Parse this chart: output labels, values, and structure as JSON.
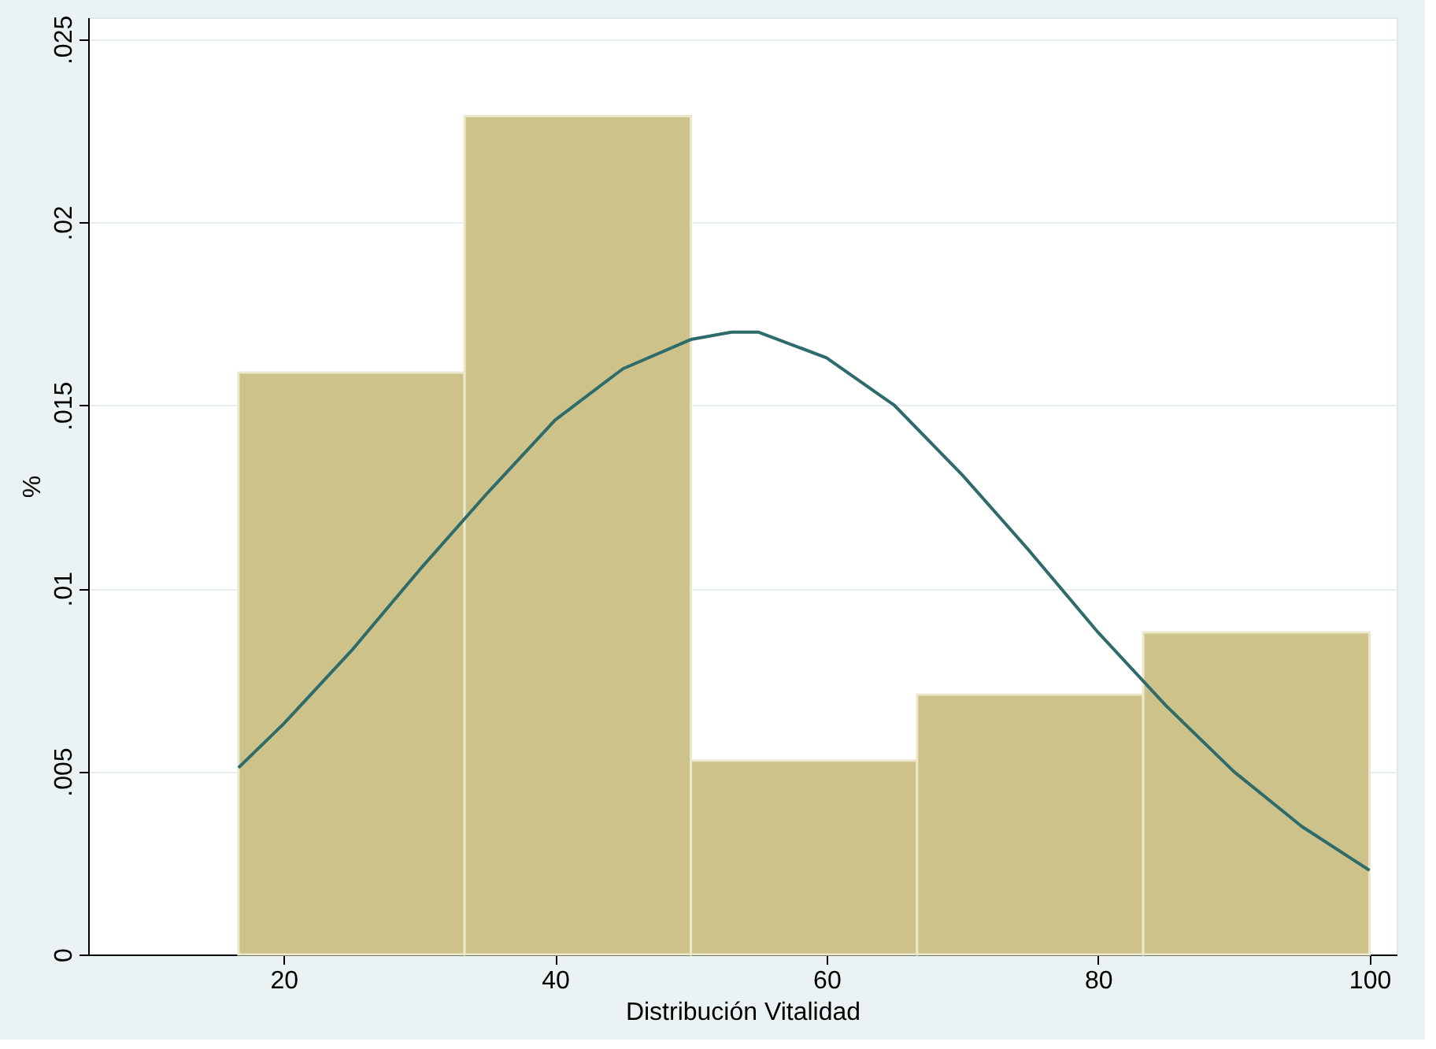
{
  "chart_data": {
    "type": "histogram",
    "xlabel": "Distribución Vitalidad",
    "ylabel": "%",
    "bins": [
      16.67,
      33.33,
      50,
      66.67,
      83.33,
      100
    ],
    "series": [
      {
        "color": "#cdc38a",
        "values": [
          0.0159,
          0.0229,
          0.0053,
          0.0071,
          0.0088
        ]
      },
      {
        "type": "line",
        "color": "#2e6b6b",
        "x": [
          16.67,
          20,
          25,
          30,
          35,
          40,
          45,
          50,
          53,
          55,
          60,
          65,
          70,
          75,
          80,
          85,
          90,
          95,
          100
        ],
        "values": [
          0.0051,
          0.0063,
          0.0083,
          0.0105,
          0.0126,
          0.0146,
          0.016,
          0.0168,
          0.017,
          0.017,
          0.0163,
          0.015,
          0.0131,
          0.011,
          0.0088,
          0.0068,
          0.005,
          0.0035,
          0.0023
        ]
      }
    ],
    "xlim": [
      5.6,
      102
    ],
    "xticks": [
      20,
      40,
      60,
      80,
      100
    ],
    "ylim": [
      0,
      0.0256
    ],
    "yticks": [
      {
        "value": 0,
        "label": "0"
      },
      {
        "value": 0.005,
        "label": ".005"
      },
      {
        "value": 0.01,
        "label": ".01"
      },
      {
        "value": 0.015,
        "label": ".015"
      },
      {
        "value": 0.02,
        "label": ".02"
      },
      {
        "value": 0.025,
        "label": ".025"
      }
    ],
    "grid": "y",
    "legend": false,
    "line_style": "solid",
    "marker": "none"
  }
}
